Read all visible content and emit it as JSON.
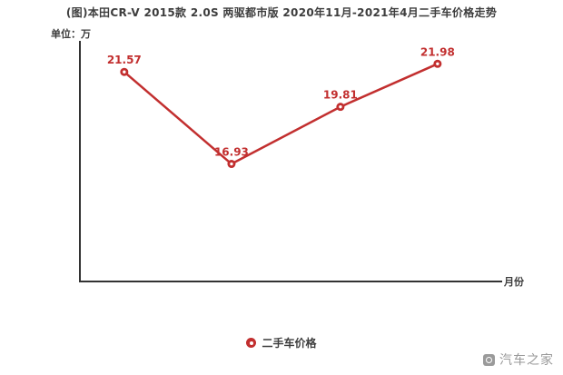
{
  "page": {
    "background": "#ffffff"
  },
  "chart_data": {
    "type": "line",
    "title": "(图)本田CR-V 2015款 2.0S 两驱都市版 2020年11月-2021年4月二手车价格走势",
    "unit_label": "单位：万",
    "xlabel": "月份",
    "ylim": [
      11,
      23
    ],
    "grid": false,
    "legend_position": "bottom",
    "axis_color": "#333333",
    "series": [
      {
        "name": "二手车价格",
        "values": [
          21.57,
          16.93,
          19.81,
          21.98
        ],
        "labels": [
          "21.57",
          "16.93",
          "19.81",
          "21.98"
        ],
        "color": "#c22f2f"
      }
    ]
  },
  "legend": {
    "label": "二手车价格",
    "marker_color": "#c22f2f"
  },
  "watermark": {
    "brand": "汽车之家"
  }
}
